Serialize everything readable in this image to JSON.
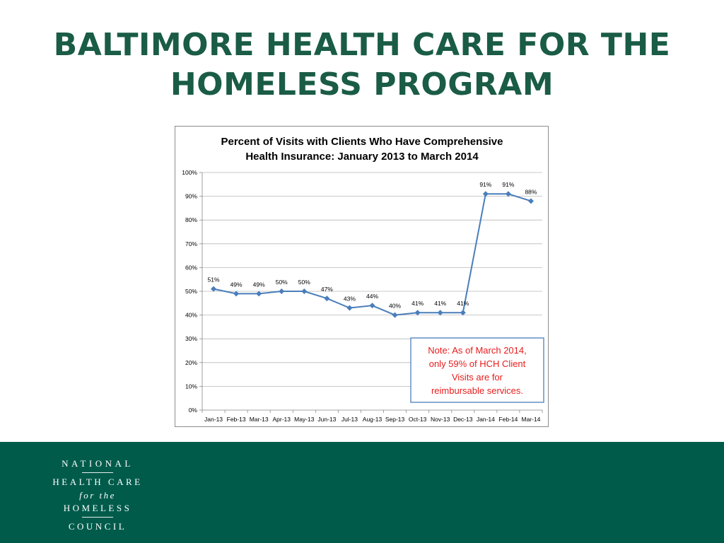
{
  "slide": {
    "title_line1": "BALTIMORE HEALTH CARE FOR THE",
    "title_line2": "HOMELESS PROGRAM"
  },
  "logo": {
    "line1": "NATIONAL",
    "line2": "HEALTH CARE",
    "line3": "for the",
    "line4": "HOMELESS",
    "line5": "COUNCIL"
  },
  "colors": {
    "title": "#1a5c46",
    "footer": "#005b4b",
    "series": "#4a7ebb",
    "note_text": "#e81c1c",
    "note_border": "#4a7ebb"
  },
  "chart_data": {
    "type": "line",
    "title_lines": [
      "Percent of Visits with Clients Who Have Comprehensive",
      "Health Insurance: January 2013 to March 2014"
    ],
    "categories": [
      "Jan-13",
      "Feb-13",
      "Mar-13",
      "Apr-13",
      "May-13",
      "Jun-13",
      "Jul-13",
      "Aug-13",
      "Sep-13",
      "Oct-13",
      "Nov-13",
      "Dec-13",
      "Jan-14",
      "Feb-14",
      "Mar-14"
    ],
    "series": [
      {
        "values": [
          0.51,
          0.49,
          0.49,
          0.5,
          0.5,
          0.47,
          0.43,
          0.44,
          0.4,
          0.41,
          0.41,
          0.41,
          0.91,
          0.91,
          0.88
        ],
        "labels": [
          "51%",
          "49%",
          "49%",
          "50%",
          "50%",
          "47%",
          "43%",
          "44%",
          "40%",
          "41%",
          "41%",
          "41%",
          "91%",
          "91%",
          "88%"
        ]
      }
    ],
    "ylim": [
      0,
      1
    ],
    "yticks": [
      "0%",
      "10%",
      "20%",
      "30%",
      "40%",
      "50%",
      "60%",
      "70%",
      "80%",
      "90%",
      "100%"
    ],
    "grid": true,
    "legend": false,
    "annotation": {
      "lines": [
        "Note:  As of March 2014,",
        "only 59% of HCH Client",
        "Visits are for",
        "reimbursable services."
      ]
    }
  }
}
